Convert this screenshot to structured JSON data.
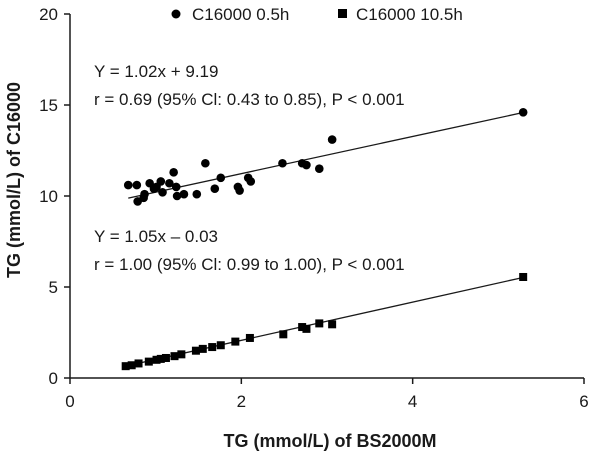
{
  "chart_data": {
    "type": "scatter",
    "xlabel": "TG (mmol/L) of BS2000M",
    "ylabel": "TG (mmol/L) of C16000",
    "xlim": [
      0,
      6
    ],
    "ylim": [
      0,
      20
    ],
    "xticks": [
      "0",
      "2",
      "4",
      "6"
    ],
    "yticks": [
      "0",
      "5",
      "10",
      "15",
      "20"
    ],
    "legend_position": "top",
    "series": [
      {
        "name": "C16000 0.5h",
        "marker": "circle",
        "color": "#000000",
        "points": [
          [
            0.68,
            10.6
          ],
          [
            0.78,
            10.6
          ],
          [
            0.87,
            10.1
          ],
          [
            0.93,
            10.7
          ],
          [
            0.98,
            10.4
          ],
          [
            1.01,
            10.5
          ],
          [
            1.06,
            10.8
          ],
          [
            1.08,
            10.2
          ],
          [
            1.16,
            10.7
          ],
          [
            1.21,
            11.3
          ],
          [
            1.24,
            10.5
          ],
          [
            1.33,
            10.1
          ],
          [
            1.48,
            10.1
          ],
          [
            1.58,
            11.8
          ],
          [
            1.69,
            10.4
          ],
          [
            1.76,
            11.0
          ],
          [
            1.96,
            10.5
          ],
          [
            1.98,
            10.3
          ],
          [
            2.08,
            11.0
          ],
          [
            2.11,
            10.8
          ],
          [
            2.48,
            11.8
          ],
          [
            2.71,
            11.8
          ],
          [
            2.76,
            11.7
          ],
          [
            2.91,
            11.5
          ],
          [
            3.06,
            13.1
          ],
          [
            5.29,
            14.6
          ],
          [
            0.79,
            9.7
          ],
          [
            0.86,
            9.9
          ],
          [
            1.25,
            10.0
          ]
        ],
        "fit": {
          "slope": 1.02,
          "intercept": 9.19,
          "x_range": [
            0.68,
            5.29
          ]
        }
      },
      {
        "name": "C16000 10.5h",
        "marker": "square",
        "color": "#000000",
        "points": [
          [
            0.65,
            0.65
          ],
          [
            0.72,
            0.7
          ],
          [
            0.8,
            0.8
          ],
          [
            0.92,
            0.9
          ],
          [
            1.01,
            1.0
          ],
          [
            1.06,
            1.05
          ],
          [
            1.12,
            1.1
          ],
          [
            1.22,
            1.2
          ],
          [
            1.3,
            1.3
          ],
          [
            1.47,
            1.5
          ],
          [
            1.55,
            1.6
          ],
          [
            1.66,
            1.7
          ],
          [
            1.76,
            1.8
          ],
          [
            1.93,
            2.0
          ],
          [
            2.1,
            2.2
          ],
          [
            2.49,
            2.4
          ],
          [
            2.71,
            2.8
          ],
          [
            2.76,
            2.7
          ],
          [
            2.91,
            3.0
          ],
          [
            3.06,
            2.95
          ],
          [
            5.29,
            5.55
          ]
        ],
        "fit": {
          "slope": 1.05,
          "intercept": -0.03,
          "x_range": [
            0.65,
            5.29
          ]
        }
      }
    ],
    "annotations": {
      "eq1": "Y = 1.02x + 9.19",
      "stat1": "r = 0.69 (95% Cl: 0.43 to 0.85), P < 0.001",
      "eq2": "Y = 1.05x – 0.03",
      "stat2": "r = 1.00 (95% Cl: 0.99 to 1.00), P < 0.001"
    }
  }
}
